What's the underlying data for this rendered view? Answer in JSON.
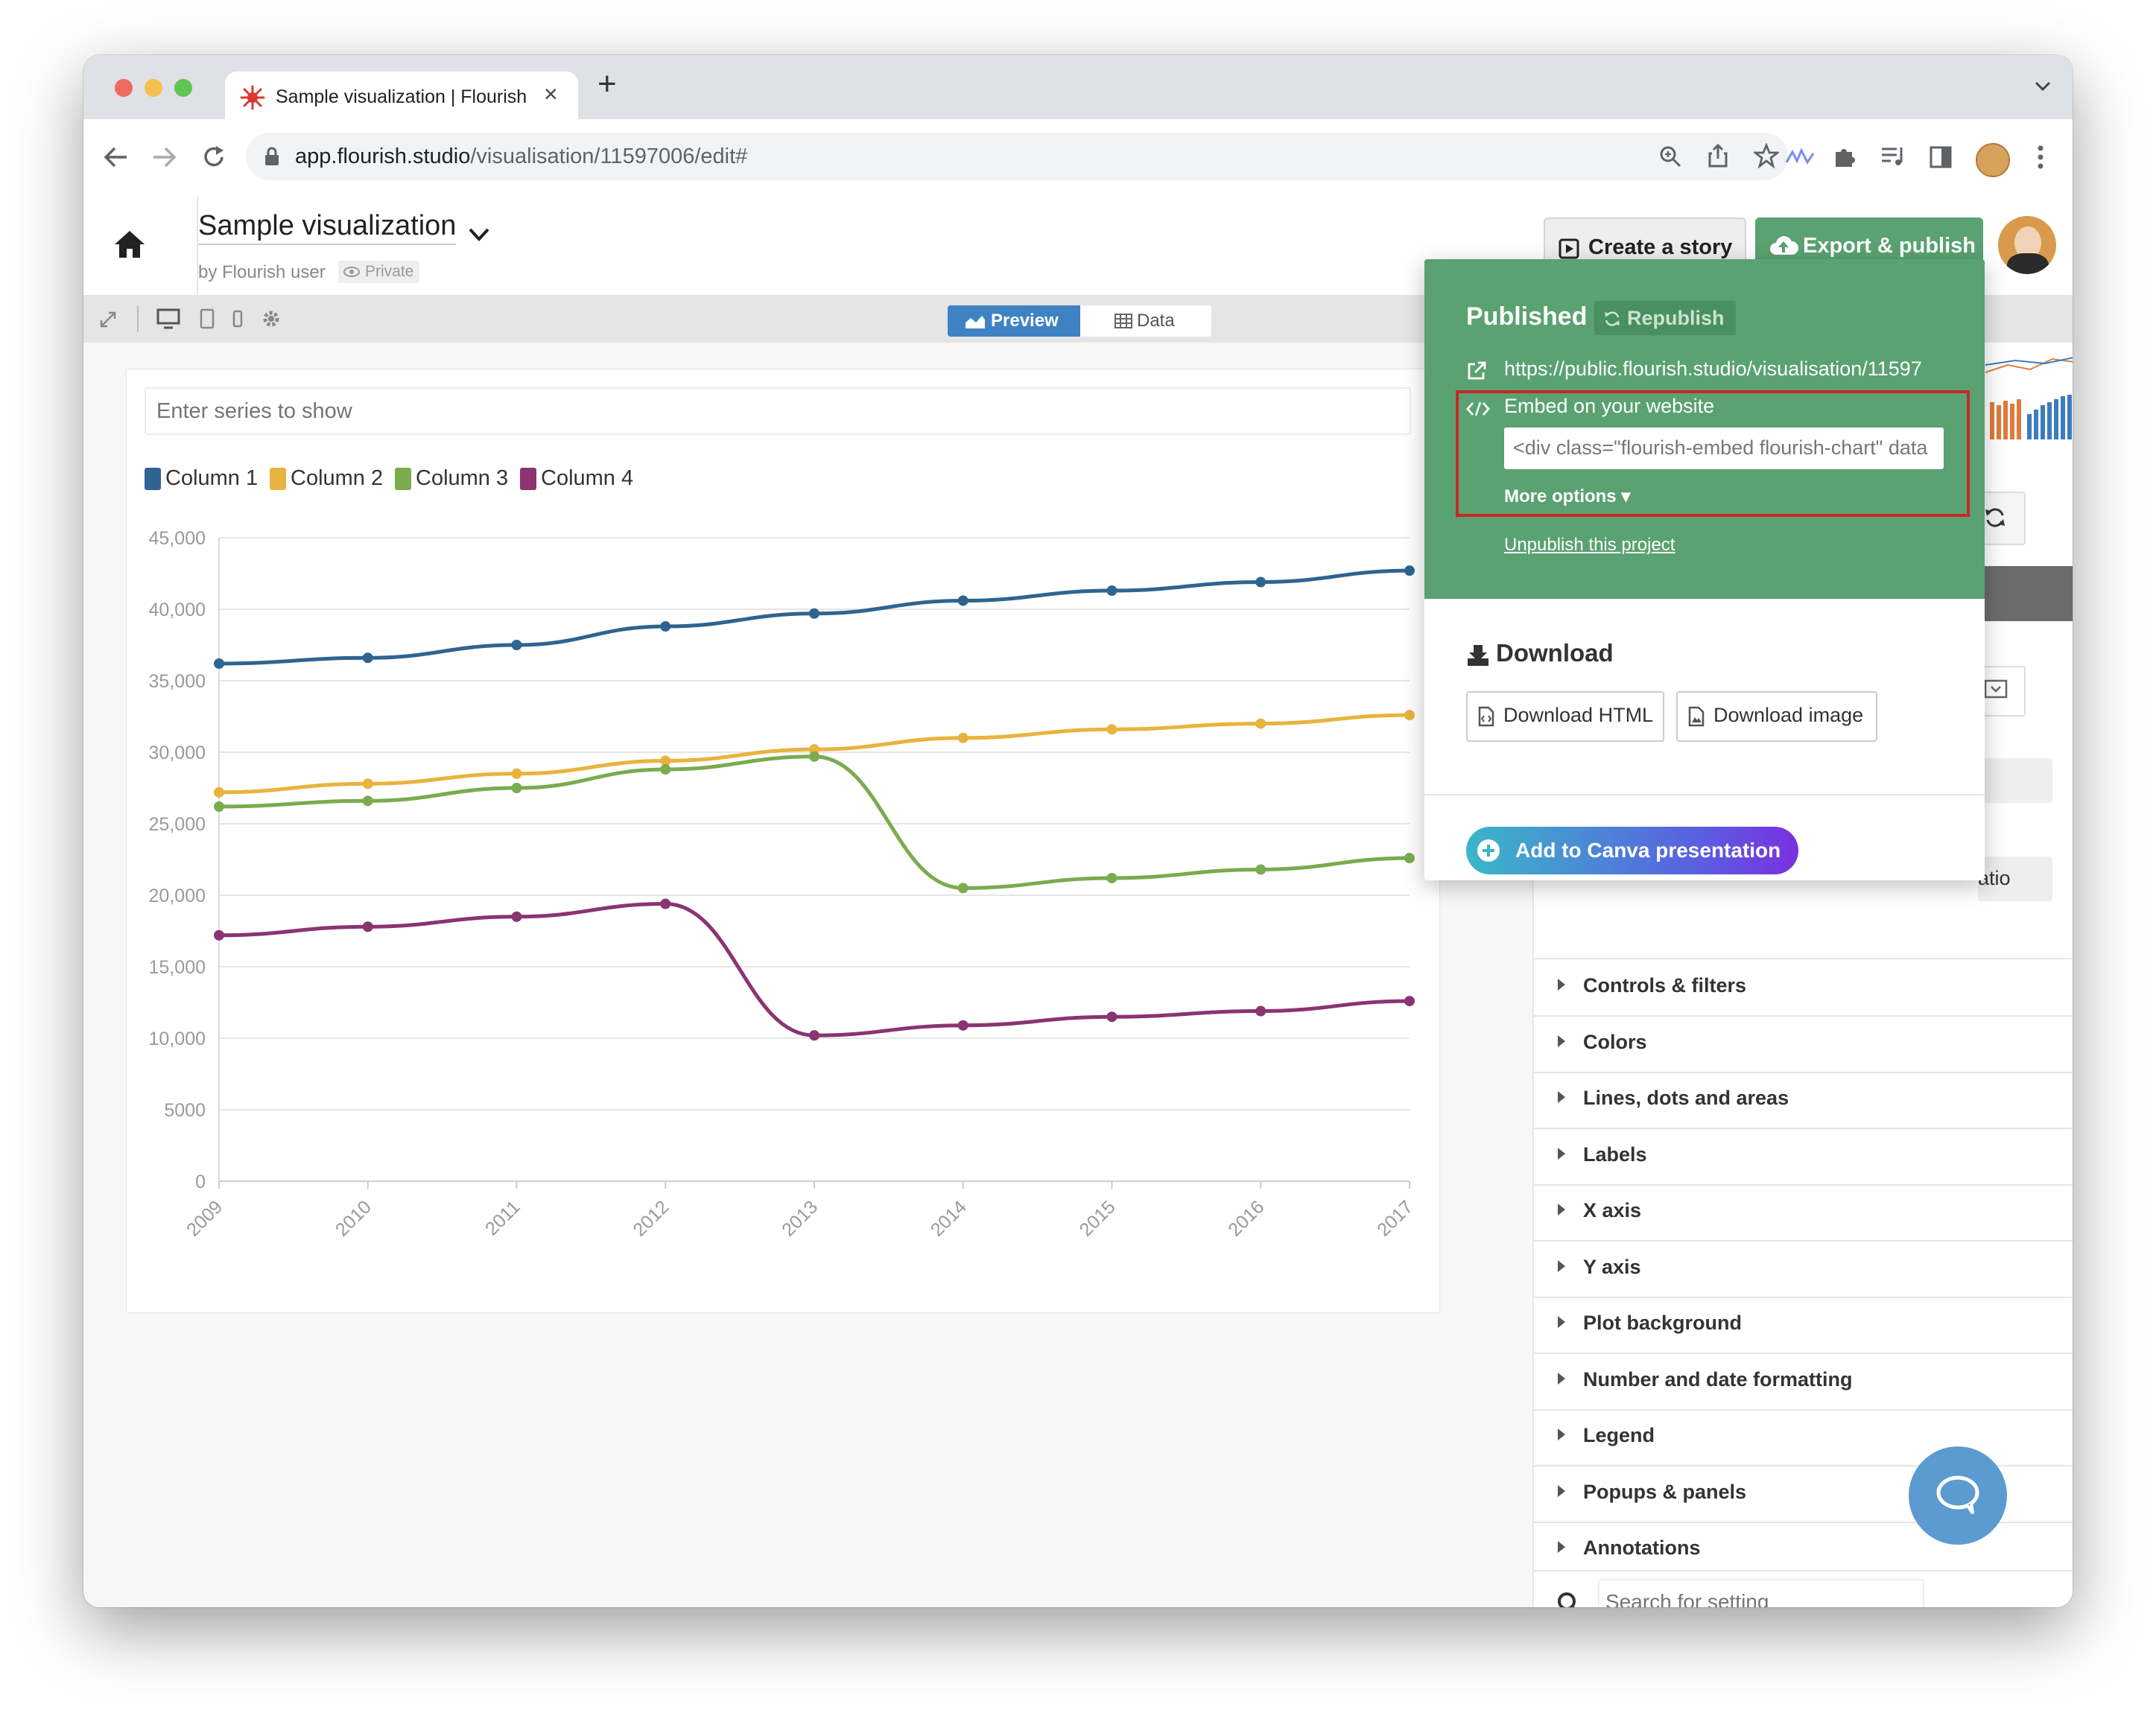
{
  "browser": {
    "tab_title": "Sample visualization | Flourish",
    "new_tab": "+",
    "url_host": "app.flourish.studio",
    "url_path": "/visualisation/11597006/edit#"
  },
  "header": {
    "title": "Sample visualization",
    "byline": "by Flourish user",
    "privacy_badge": "Private",
    "create_story_label": "Create a story",
    "export_label": "Export & publish",
    "export_color": "#5aa271"
  },
  "toolbar": {
    "preview_label": "Preview",
    "data_label": "Data",
    "preview_color": "#3f82c4"
  },
  "filter": {
    "placeholder": "Enter series to show"
  },
  "chart_data": {
    "type": "line",
    "x": [
      "2009",
      "2010",
      "2011",
      "2012",
      "2013",
      "2014",
      "2015",
      "2016",
      "2017"
    ],
    "series": [
      {
        "name": "Column 1",
        "color": "#2f6491",
        "values": [
          36200,
          36600,
          37500,
          38800,
          39700,
          40600,
          41300,
          41900,
          42700
        ]
      },
      {
        "name": "Column 2",
        "color": "#e8b33e",
        "values": [
          27200,
          27800,
          28500,
          29400,
          30200,
          31000,
          31600,
          32000,
          32600
        ]
      },
      {
        "name": "Column 3",
        "color": "#7aab4f",
        "values": [
          26200,
          26600,
          27500,
          28800,
          29700,
          20500,
          21200,
          21800,
          22600
        ]
      },
      {
        "name": "Column 4",
        "color": "#8a3471",
        "values": [
          17200,
          17800,
          18500,
          19400,
          10200,
          10900,
          11500,
          11900,
          12600
        ]
      }
    ],
    "y_ticks": [
      "45,000",
      "40,000",
      "35,000",
      "30,000",
      "25,000",
      "20,000",
      "15,000",
      "10,000",
      "5000",
      "0"
    ],
    "ylim": [
      0,
      45000
    ],
    "legend_position": "top-left",
    "grid": true
  },
  "popover": {
    "published_label": "Published",
    "republish_label": "Republish",
    "public_url": "https://public.flourish.studio/visualisation/11597",
    "embed_label": "Embed on your website",
    "embed_code": "<div class=\"flourish-embed flourish-chart\" data",
    "more_options_label": "More options",
    "unpublish_label": "Unpublish this project",
    "download_heading": "Download",
    "download_html_label": "Download HTML",
    "download_image_label": "Download image",
    "canva_label": "Add to Canva presentation",
    "partial_ratio_label": "atio"
  },
  "settings": {
    "sections": [
      "Controls & filters",
      "Colors",
      "Lines, dots and areas",
      "Labels",
      "X axis",
      "Y axis",
      "Plot background",
      "Number and date formatting",
      "Legend",
      "Popups & panels",
      "Annotations"
    ],
    "search_placeholder": "Search for setting"
  }
}
